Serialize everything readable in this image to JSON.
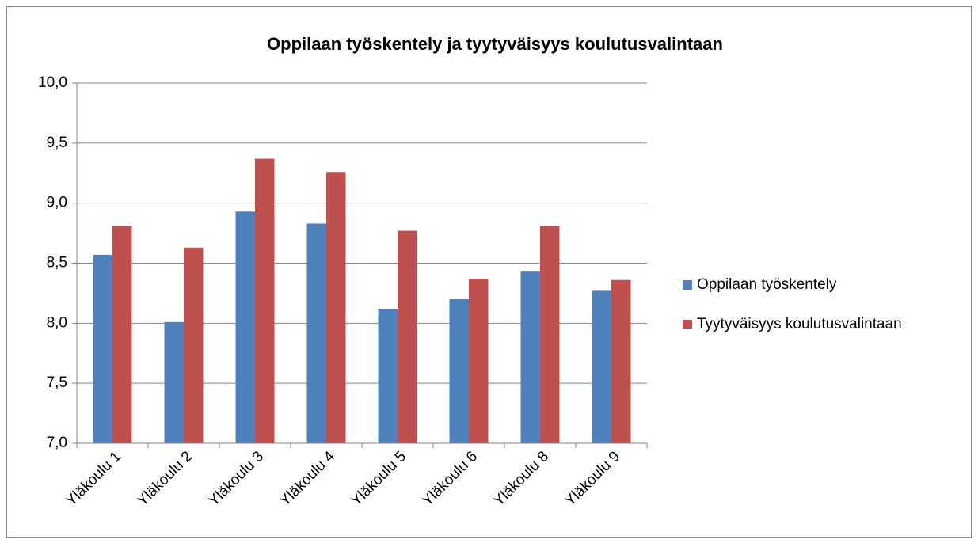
{
  "chart_data": {
    "type": "bar",
    "title": "Oppilaan työskentely ja tyytyväisyys koulutusvalintaan",
    "categories": [
      "Yläkoulu 1",
      "Yläkoulu 2",
      "Yläkoulu 3",
      "Yläkoulu 4",
      "Yläkoulu 5",
      "Yläkoulu 6",
      "Yläkoulu 8",
      "Yläkoulu 9"
    ],
    "series": [
      {
        "name": "Oppilaan työskentely",
        "color": "#4f81bd",
        "values": [
          8.57,
          8.01,
          8.93,
          8.83,
          8.12,
          8.2,
          8.43,
          8.27
        ]
      },
      {
        "name": "Tyytyväisyys koulutusvalintaan",
        "color": "#c0504d",
        "values": [
          8.81,
          8.63,
          9.37,
          9.26,
          8.77,
          8.37,
          8.81,
          8.36
        ]
      }
    ],
    "ylim": [
      7,
      10
    ],
    "yticks": [
      {
        "value": 7,
        "label": "7,0"
      },
      {
        "value": 7.5,
        "label": "7,5"
      },
      {
        "value": 8,
        "label": "8,0"
      },
      {
        "value": 8.5,
        "label": "8,5"
      },
      {
        "value": 9,
        "label": "9,0"
      },
      {
        "value": 9.5,
        "label": "9,5"
      },
      {
        "value": 10,
        "label": "10,0"
      }
    ],
    "grid": true,
    "legend": "right"
  }
}
